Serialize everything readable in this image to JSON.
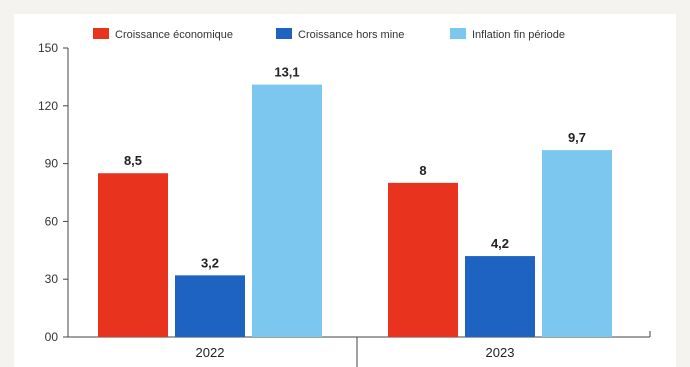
{
  "chart_data": {
    "type": "bar",
    "categories": [
      "2022",
      "2023"
    ],
    "series": [
      {
        "name": "Croissance économique",
        "color": "#e8331f",
        "values": [
          8.5,
          8
        ],
        "labels": [
          "8,5",
          "8"
        ]
      },
      {
        "name": "Croissance hors mine",
        "color": "#1f63c2",
        "values": [
          3.2,
          4.2
        ],
        "labels": [
          "3,2",
          "4,2"
        ]
      },
      {
        "name": "Inflation fin période",
        "color": "#7cc7ef",
        "values": [
          13.1,
          9.7
        ],
        "labels": [
          "13,1",
          "9,7"
        ]
      }
    ],
    "yticks": [
      "00",
      "30",
      "60",
      "90",
      "120",
      "150"
    ],
    "ylim": [
      0,
      15
    ],
    "legend_position": "top",
    "grid": false
  }
}
